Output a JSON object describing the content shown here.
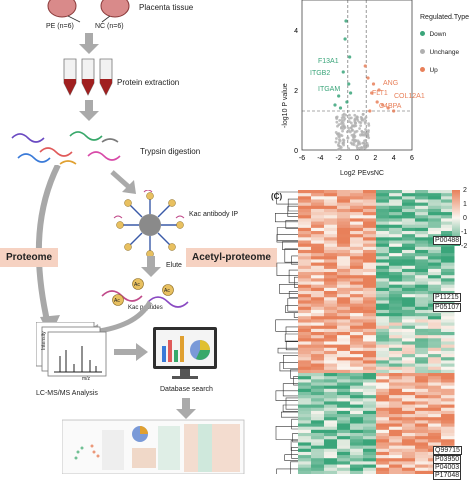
{
  "workflow": {
    "placenta_label": "Placenta tissue",
    "pe_label": "PE (n=6)",
    "nc_label": "NC (n=6)",
    "extraction_label": "Protein extraction",
    "trypsin_label": "Trypsin digestion",
    "kac_ip_label": "Kac antibody IP",
    "elute_label": "Elute",
    "kac_peptides_label": "Kac peptides",
    "ac_label": "Ac",
    "proteome_label": "Proteome",
    "acetyl_label": "Acetyl-proteome",
    "lcms_label": "LC-MS/MS Analysis",
    "intensity_label": "Intensity",
    "mz_label": "m/z",
    "db_label": "Database search"
  },
  "volcano": {
    "ylabel": "-log10 P value",
    "xlabel": "Log2 PEvsNC",
    "xticks": [
      "-6",
      "-4",
      "-2",
      "0",
      "2",
      "4",
      "6"
    ],
    "yticks": [
      "4",
      "2",
      "0"
    ],
    "legend_title": "Regulated.Type",
    "legend_items": [
      {
        "label": "Down",
        "color": "#3aa57a"
      },
      {
        "label": "Unchange",
        "color": "#b0b0b0"
      },
      {
        "label": "Up",
        "color": "#e8805a"
      }
    ],
    "down_genes": [
      "F13A1",
      "ITGB2",
      "ITGAM"
    ],
    "up_genes": [
      "ANG",
      "FLT1",
      "COL12A1",
      "C4BPA"
    ]
  },
  "heatmap": {
    "panel_label": "(C)",
    "scale_ticks": [
      "2",
      "1",
      "0",
      "-1",
      "-2"
    ],
    "protein_labels": [
      "P00488",
      "P11215",
      "P05107",
      "Q99715",
      "P03950",
      "P04003",
      "P17048"
    ],
    "colors": {
      "high": "#e8805a",
      "mid": "#fbf5ef",
      "low": "#3aa57a"
    }
  },
  "chart_data": {
    "type": "scatter",
    "title": "",
    "xlabel": "Log2 PEvsNC",
    "ylabel": "-log10 P value",
    "xlim": [
      -6,
      6
    ],
    "ylim": [
      0,
      5
    ],
    "series": [
      {
        "name": "Down",
        "color": "#3aa57a",
        "points": [
          [
            -1.2,
            4.3
          ],
          [
            -0.8,
            3.1
          ],
          [
            -1.5,
            2.6
          ],
          [
            -2.0,
            1.8
          ],
          [
            -0.9,
            2.2
          ],
          [
            -1.1,
            1.6
          ],
          [
            -1.8,
            1.4
          ],
          [
            -2.4,
            1.5
          ],
          [
            -0.7,
            1.9
          ],
          [
            -1.3,
            3.7
          ]
        ]
      },
      {
        "name": "Unchange",
        "color": "#b0b0b0",
        "points": [
          [
            0.1,
            0.3
          ],
          [
            -0.3,
            0.8
          ],
          [
            0.4,
            0.5
          ],
          [
            0.6,
            1.0
          ],
          [
            -0.5,
            0.2
          ],
          [
            1.2,
            0.6
          ],
          [
            -1.0,
            0.4
          ],
          [
            0.0,
            1.1
          ],
          [
            0.9,
            0.2
          ],
          [
            -0.2,
            0.6
          ]
        ]
      },
      {
        "name": "Up",
        "color": "#e8805a",
        "points": [
          [
            1.2,
            2.4
          ],
          [
            1.6,
            1.9
          ],
          [
            2.2,
            1.6
          ],
          [
            2.8,
            1.5
          ],
          [
            1.4,
            1.3
          ],
          [
            3.4,
            1.4
          ],
          [
            0.9,
            2.8
          ],
          [
            1.8,
            2.2
          ],
          [
            2.4,
            2.0
          ],
          [
            4.0,
            1.3
          ]
        ]
      }
    ]
  }
}
